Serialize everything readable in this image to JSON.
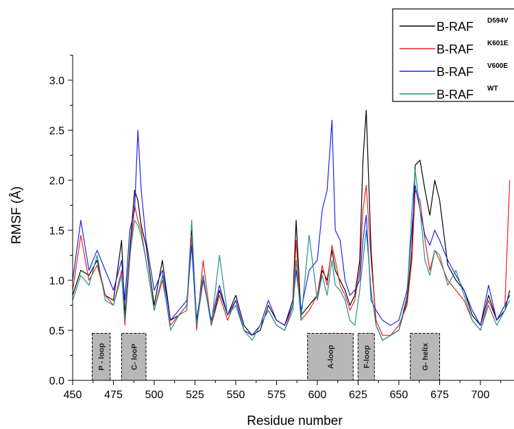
{
  "chart_data": {
    "type": "line",
    "xlabel": "Residue number",
    "ylabel": "RMSF (Å)",
    "xlim": [
      450,
      718
    ],
    "ylim": [
      0,
      3.25
    ],
    "xticks": [
      450,
      475,
      500,
      525,
      550,
      575,
      600,
      625,
      650,
      675,
      700
    ],
    "xtick_labels": [
      "450",
      "475",
      "500",
      "525",
      "550",
      "575",
      "600",
      "625",
      "650",
      "675",
      "700"
    ],
    "yticks": [
      0,
      0.5,
      1.0,
      1.5,
      2.0,
      2.5,
      3.0
    ],
    "ytick_labels": [
      "0.0",
      "0.5",
      "1.0",
      "1.5",
      "2.0",
      "2.5",
      "3.0"
    ],
    "legend_position": "top-right",
    "regions": [
      {
        "label": "P - loop",
        "start": 462,
        "end": 473,
        "height": 0.47
      },
      {
        "label": "C- looP",
        "start": 480,
        "end": 495,
        "height": 0.47
      },
      {
        "label": "A-loop",
        "start": 594,
        "end": 622,
        "height": 0.47
      },
      {
        "label": "F-loop",
        "start": 625,
        "end": 635,
        "height": 0.47
      },
      {
        "label": "G- helix",
        "start": 657,
        "end": 675,
        "height": 0.47
      }
    ],
    "x": [
      450,
      455,
      460,
      465,
      470,
      475,
      480,
      482,
      485,
      488,
      490,
      492,
      495,
      500,
      505,
      510,
      515,
      520,
      523,
      526,
      530,
      535,
      540,
      545,
      550,
      555,
      560,
      565,
      570,
      575,
      580,
      585,
      587,
      590,
      595,
      600,
      603,
      606,
      609,
      611,
      614,
      617,
      620,
      623,
      626,
      628,
      630,
      633,
      636,
      640,
      645,
      650,
      655,
      658,
      660,
      663,
      666,
      669,
      672,
      675,
      680,
      685,
      690,
      695,
      700,
      705,
      710,
      715,
      718
    ],
    "series": [
      {
        "name": "B-RAF",
        "superscript": "D594V",
        "color": "#000000",
        "values": [
          0.85,
          1.1,
          1.05,
          1.2,
          0.85,
          0.8,
          1.4,
          0.65,
          1.3,
          1.9,
          1.8,
          1.55,
          1.35,
          0.75,
          1.2,
          0.6,
          0.65,
          0.75,
          1.5,
          0.6,
          1.05,
          0.55,
          0.9,
          0.65,
          0.85,
          0.55,
          0.45,
          0.5,
          0.75,
          0.6,
          0.55,
          0.8,
          1.6,
          0.65,
          0.75,
          0.85,
          1.1,
          1.0,
          1.3,
          1.1,
          1.0,
          0.9,
          0.75,
          0.85,
          1.2,
          2.2,
          2.7,
          1.3,
          0.55,
          0.4,
          0.45,
          0.5,
          0.8,
          1.3,
          2.15,
          2.2,
          1.9,
          1.65,
          2.0,
          1.8,
          1.15,
          1.0,
          0.9,
          0.65,
          0.55,
          0.85,
          0.6,
          0.7,
          0.9
        ]
      },
      {
        "name": "B-RAF",
        "superscript": "K601E",
        "color": "#e8201e",
        "values": [
          0.9,
          1.45,
          1.0,
          1.15,
          0.85,
          0.75,
          1.1,
          0.55,
          1.2,
          1.75,
          1.6,
          1.5,
          1.2,
          0.7,
          1.0,
          0.55,
          0.65,
          0.7,
          1.45,
          0.5,
          1.2,
          0.55,
          0.85,
          0.6,
          0.8,
          0.5,
          0.45,
          0.55,
          0.7,
          0.55,
          0.5,
          0.75,
          1.4,
          0.6,
          0.7,
          0.85,
          1.15,
          0.95,
          1.35,
          1.2,
          0.95,
          0.85,
          0.7,
          0.8,
          1.1,
          1.7,
          1.95,
          1.2,
          0.6,
          0.45,
          0.45,
          0.55,
          0.75,
          1.2,
          1.9,
          1.8,
          1.4,
          1.1,
          1.3,
          1.2,
          1.0,
          0.9,
          0.8,
          0.6,
          0.5,
          0.8,
          0.6,
          0.75,
          2.0
        ]
      },
      {
        "name": "B-RAF",
        "superscript": "V600E",
        "color": "#1f1fe8",
        "values": [
          1.0,
          1.6,
          1.1,
          1.3,
          1.1,
          0.9,
          1.2,
          0.8,
          1.5,
          1.7,
          2.5,
          1.9,
          1.4,
          0.9,
          1.1,
          0.6,
          0.7,
          0.8,
          1.35,
          0.55,
          1.0,
          0.6,
          0.95,
          0.65,
          0.8,
          0.5,
          0.45,
          0.55,
          0.8,
          0.6,
          0.55,
          0.75,
          1.1,
          0.7,
          1.1,
          1.2,
          1.7,
          1.9,
          2.6,
          1.5,
          1.4,
          1.0,
          0.85,
          0.9,
          1.0,
          1.4,
          1.65,
          0.8,
          0.7,
          0.6,
          0.55,
          0.6,
          0.9,
          1.5,
          1.95,
          1.7,
          1.45,
          1.35,
          1.5,
          1.4,
          1.2,
          1.05,
          0.9,
          0.7,
          0.55,
          0.95,
          0.6,
          0.75,
          0.85
        ]
      },
      {
        "name": "B-RAF",
        "superscript": "WT",
        "color": "#208f8c",
        "values": [
          0.8,
          1.05,
          0.95,
          1.25,
          0.8,
          0.75,
          1.05,
          0.6,
          1.25,
          1.6,
          1.55,
          1.45,
          1.2,
          0.7,
          1.05,
          0.5,
          0.65,
          0.75,
          1.6,
          0.55,
          1.05,
          0.55,
          1.25,
          0.65,
          0.75,
          0.5,
          0.4,
          0.55,
          0.7,
          0.55,
          0.5,
          0.7,
          1.2,
          0.6,
          1.45,
          0.8,
          1.05,
          0.85,
          1.2,
          0.95,
          0.9,
          0.8,
          0.6,
          0.55,
          0.9,
          1.2,
          1.5,
          0.9,
          0.55,
          0.4,
          0.45,
          0.5,
          0.85,
          1.7,
          2.1,
          1.7,
          1.2,
          1.05,
          1.3,
          1.25,
          0.95,
          1.1,
          0.85,
          0.6,
          0.5,
          0.75,
          0.55,
          0.7,
          0.8
        ]
      }
    ]
  }
}
